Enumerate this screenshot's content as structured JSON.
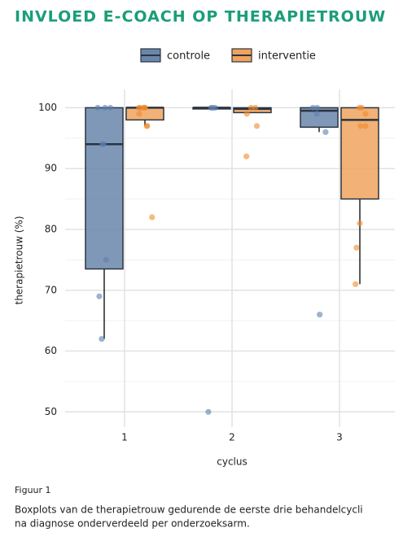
{
  "chart_data": {
    "type": "boxplot",
    "title": "INVLOED E-COACH OP THERAPIETROUW",
    "x_label": "cyclus",
    "y_label": "therapietrouw (%)",
    "categories": [
      "1",
      "2",
      "3"
    ],
    "ylim": [
      47.5,
      103
    ],
    "yticks": [
      50,
      60,
      70,
      80,
      90,
      100
    ],
    "minor_yticks": [
      55,
      65,
      75,
      85,
      95
    ],
    "grid": true,
    "legend": "top",
    "series": [
      {
        "name": "controle",
        "color": "#6a86ab",
        "point_color": "#5b7fae",
        "boxes": [
          {
            "whisker_low": 62,
            "q1": 73.5,
            "median": 94,
            "q3": 100,
            "whisker_high": 100
          },
          {
            "whisker_low": 99.8,
            "q1": 99.8,
            "median": 100,
            "q3": 100,
            "whisker_high": 100
          },
          {
            "whisker_low": 96,
            "q1": 96.8,
            "median": 99.5,
            "q3": 100,
            "whisker_high": 100
          }
        ],
        "points": [
          [
            100,
            100,
            100,
            94,
            94,
            75,
            69,
            62
          ],
          [
            100,
            100,
            100,
            50
          ],
          [
            100,
            100,
            99,
            96,
            66
          ]
        ]
      },
      {
        "name": "interventie",
        "color": "#f0a35e",
        "point_color": "#f08a2c",
        "boxes": [
          {
            "whisker_low": 97,
            "q1": 98,
            "median": 100,
            "q3": 100,
            "whisker_high": 100
          },
          {
            "whisker_low": 99.2,
            "q1": 99.2,
            "median": 99.8,
            "q3": 100,
            "whisker_high": 100
          },
          {
            "whisker_low": 71,
            "q1": 85,
            "median": 98,
            "q3": 100,
            "whisker_high": 100
          }
        ],
        "points": [
          [
            100,
            100,
            100,
            100,
            100,
            99,
            97,
            97,
            82
          ],
          [
            100,
            100,
            99,
            97,
            92
          ],
          [
            100,
            100,
            99,
            97,
            97,
            81,
            77,
            71
          ]
        ]
      }
    ]
  },
  "figure_label": "Figuur 1",
  "caption": [
    "Boxplots van de therapietrouw gedurende de eerste drie behandelcycli",
    "na diagnose onderverdeeld per onderzoeksarm."
  ]
}
